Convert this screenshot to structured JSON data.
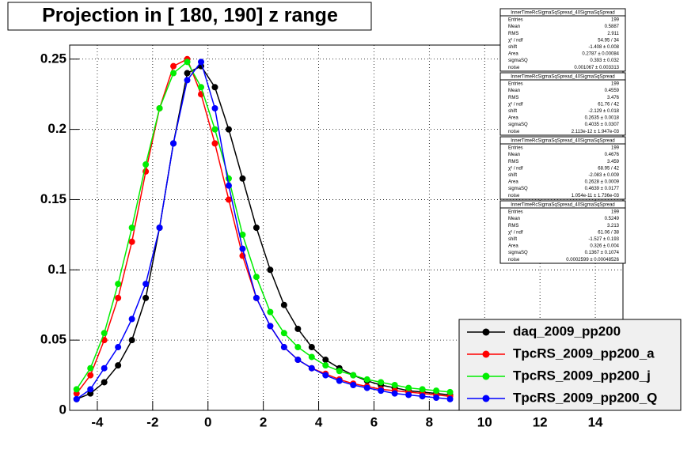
{
  "chart_data": {
    "type": "scatter",
    "title": "Projection in [ 180, 190] z range",
    "x": [
      -4.75,
      -4.25,
      -3.75,
      -3.25,
      -2.75,
      -2.25,
      -1.75,
      -1.25,
      -0.75,
      -0.25,
      0.25,
      0.75,
      1.25,
      1.75,
      2.25,
      2.75,
      3.25,
      3.75,
      4.25,
      4.75,
      5.25,
      5.75,
      6.25,
      6.75,
      7.25,
      7.75,
      8.25,
      8.75
    ],
    "series": [
      {
        "name": "daq_2009_pp200",
        "color": "#000000",
        "values": [
          0.008,
          0.012,
          0.02,
          0.032,
          0.05,
          0.08,
          0.13,
          0.19,
          0.24,
          0.245,
          0.23,
          0.2,
          0.165,
          0.13,
          0.1,
          0.075,
          0.058,
          0.045,
          0.036,
          0.03,
          0.025,
          0.021,
          0.018,
          0.016,
          0.014,
          0.013,
          0.012,
          0.011
        ]
      },
      {
        "name": "TpcRS_2009_pp200_a",
        "color": "#ff0000",
        "values": [
          0.012,
          0.025,
          0.05,
          0.08,
          0.12,
          0.17,
          0.215,
          0.245,
          0.25,
          0.225,
          0.19,
          0.15,
          0.11,
          0.08,
          0.06,
          0.045,
          0.036,
          0.03,
          0.026,
          0.022,
          0.019,
          0.017,
          0.015,
          0.014,
          0.013,
          0.012,
          0.011,
          0.01
        ]
      },
      {
        "name": "TpcRS_2009_pp200_j",
        "color": "#00ee00",
        "values": [
          0.015,
          0.03,
          0.055,
          0.09,
          0.13,
          0.175,
          0.215,
          0.24,
          0.248,
          0.23,
          0.2,
          0.165,
          0.125,
          0.095,
          0.07,
          0.055,
          0.045,
          0.038,
          0.032,
          0.028,
          0.025,
          0.022,
          0.02,
          0.018,
          0.016,
          0.015,
          0.014,
          0.013
        ]
      },
      {
        "name": "TpcRS_2009_pp200_Q",
        "color": "#0000ff",
        "values": [
          0.008,
          0.015,
          0.03,
          0.045,
          0.065,
          0.09,
          0.13,
          0.19,
          0.235,
          0.248,
          0.215,
          0.16,
          0.115,
          0.08,
          0.06,
          0.045,
          0.036,
          0.03,
          0.025,
          0.021,
          0.018,
          0.016,
          0.014,
          0.012,
          0.011,
          0.01,
          0.009,
          0.008
        ]
      }
    ],
    "xlim": [
      -5,
      15
    ],
    "ylim": [
      0,
      0.26
    ],
    "xticks": [
      -4,
      -2,
      0,
      2,
      4,
      6,
      8,
      10,
      12,
      14
    ],
    "yticks": [
      0,
      0.05,
      0.1,
      0.15,
      0.2,
      0.25
    ],
    "grid": true,
    "legend": "bottom-right",
    "stats": [
      {
        "title": "InnerTimeRcSigmaSqSpread_40SigmaSqSpread",
        "rows": [
          [
            "Entries",
            199
          ],
          [
            "Mean",
            0.5887
          ],
          [
            "RMS",
            2.911
          ],
          [
            "χ² / ndf",
            "54.95 / 34"
          ],
          [
            "shift",
            "-1.408 ± 0.008"
          ],
          [
            "Area",
            "0.2787 ± 0.00084"
          ],
          [
            "sigmaSQ",
            "0.393 ± 0.032"
          ],
          [
            "noise",
            "0.001067 ± 0.003313"
          ]
        ]
      },
      {
        "title": "InnerTimeRcSigmaSqSpread_40SigmaSqSpread",
        "rows": [
          [
            "Entries",
            199
          ],
          [
            "Mean",
            0.4559
          ],
          [
            "RMS",
            3.476
          ],
          [
            "χ² / ndf",
            "61.76 / 42"
          ],
          [
            "shift",
            "-2.129 ± 0.018"
          ],
          [
            "Area",
            "0.2635 ± 0.0018"
          ],
          [
            "sigmaSQ",
            "0.4035 ± 0.0307"
          ],
          [
            "noise",
            "2.113e-12 ± 1.947e-03"
          ]
        ]
      },
      {
        "title": "InnerTimeRcSigmaSqSpread_40SigmaSqSpread",
        "rows": [
          [
            "Entries",
            199
          ],
          [
            "Mean",
            0.4676
          ],
          [
            "RMS",
            3.459
          ],
          [
            "χ² / ndf",
            "68.95 / 42"
          ],
          [
            "shift",
            "-2.083 ± 0.009"
          ],
          [
            "Area",
            "0.2628 ± 0.0009"
          ],
          [
            "sigmaSQ",
            "0.4639 ± 0.0177"
          ],
          [
            "noise",
            "1.054e-11 ± 1.736e-03"
          ]
        ]
      },
      {
        "title": "InnerTimeRcSigmaSqSpread_40SigmaSqSpread",
        "rows": [
          [
            "Entries",
            199
          ],
          [
            "Mean",
            0.5249
          ],
          [
            "RMS",
            3.213
          ],
          [
            "χ² / ndf",
            "61.06 / 38"
          ],
          [
            "shift",
            "-1.527 ± 0.193"
          ],
          [
            "Area",
            "0.326 ± 0.004"
          ],
          [
            "sigmaSQ",
            "0.1367 ± 0.1074"
          ],
          [
            "noise",
            "0.0002599 ± 0.00048526"
          ]
        ]
      }
    ]
  }
}
